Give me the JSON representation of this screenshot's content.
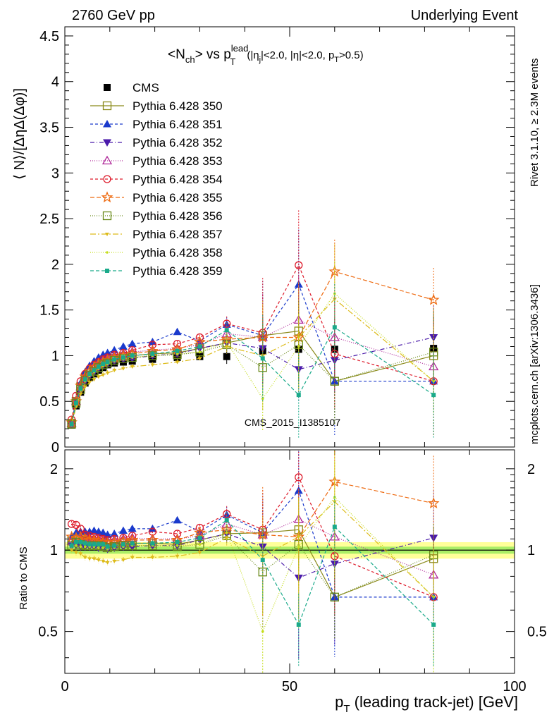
{
  "header": {
    "left": "2760 GeV pp",
    "right": "Underlying Event"
  },
  "side_labels": {
    "rivet": "Rivet 3.1.10, ≥ 2.3M events",
    "mcplots": "mcplots.cern.ch [arXiv:1306.3436]"
  },
  "watermark": "CMS_2015_I1385107",
  "title": {
    "main_prefix": "<N",
    "main_sub": "ch",
    "main_mid": "> vs p",
    "main_sup": "lead",
    "main_sub2": "T",
    "cuts_a": "(|η",
    "cuts_sub_j": "j",
    "cuts_b": "|<2.0, |η|<2.0, p",
    "cuts_sub_t": "T",
    "cuts_c": ">0.5)"
  },
  "axes": {
    "ylabel_main": "⟨ N⟩/[ΔηΔ(Δφ)]",
    "ylabel_ratio": "Ratio to CMS",
    "xlabel_main": "p",
    "xlabel_sub": "T",
    "xlabel_rest": " (leading track-jet) [GeV]"
  },
  "chart_data": [
    {
      "type": "scatter",
      "panel": "main",
      "xlim": [
        0,
        100
      ],
      "ylim": [
        0,
        4.6
      ],
      "yticks": [
        "0",
        "0.5",
        "1",
        "1.5",
        "2",
        "2.5",
        "3",
        "3.5",
        "4",
        "4.5"
      ],
      "xticks": [
        "0",
        "50",
        "100"
      ],
      "x": [
        1.5,
        2.5,
        3.5,
        4.5,
        5.5,
        6.5,
        7.5,
        8.5,
        9.5,
        11,
        13,
        15,
        19.5,
        25,
        30,
        36,
        44,
        52,
        60,
        82
      ],
      "series": [
        {
          "name": "CMS",
          "color": "#000000",
          "marker": "square-filled",
          "dash": "none",
          "values": [
            0.24,
            0.45,
            0.6,
            0.7,
            0.76,
            0.8,
            0.84,
            0.87,
            0.9,
            0.92,
            0.93,
            0.94,
            0.96,
            0.98,
            0.99,
            0.99,
            1.05,
            1.07,
            1.07,
            1.08
          ]
        },
        {
          "name": "Pythia 6.428 350",
          "color": "#8a8a1a",
          "marker": "square-open",
          "dash": "solid",
          "values": [
            0.26,
            0.5,
            0.66,
            0.76,
            0.82,
            0.86,
            0.9,
            0.93,
            0.95,
            0.97,
            0.99,
            1.0,
            1.02,
            1.03,
            1.08,
            1.14,
            1.22,
            1.27,
            0.72,
            1.0
          ]
        },
        {
          "name": "Pythia 6.428 351",
          "color": "#1a3acc",
          "marker": "triangle-up-filled",
          "dash": "4,3",
          "values": [
            0.27,
            0.52,
            0.7,
            0.82,
            0.89,
            0.94,
            0.98,
            1.01,
            1.03,
            1.06,
            1.1,
            1.13,
            1.15,
            1.26,
            1.16,
            1.34,
            1.22,
            1.78,
            0.72,
            0.72
          ]
        },
        {
          "name": "Pythia 6.428 352",
          "color": "#4a1aaa",
          "marker": "triangle-down-filled",
          "dash": "6,3,1,3",
          "values": [
            0.25,
            0.47,
            0.62,
            0.72,
            0.78,
            0.82,
            0.86,
            0.89,
            0.91,
            0.94,
            0.96,
            0.97,
            1.0,
            1.02,
            1.08,
            1.14,
            1.08,
            0.85,
            0.95,
            1.2
          ]
        },
        {
          "name": "Pythia 6.428 353",
          "color": "#b02a9a",
          "marker": "triangle-up-open",
          "dash": "1,2",
          "values": [
            0.26,
            0.5,
            0.66,
            0.77,
            0.84,
            0.88,
            0.92,
            0.95,
            0.97,
            1.0,
            1.02,
            1.04,
            1.06,
            1.08,
            1.12,
            1.24,
            1.2,
            1.39,
            1.2,
            0.88
          ]
        },
        {
          "name": "Pythia 6.428 354",
          "color": "#dd1a2a",
          "marker": "circle-open",
          "dash": "4,3",
          "values": [
            0.3,
            0.56,
            0.72,
            0.8,
            0.86,
            0.9,
            0.93,
            0.96,
            0.98,
            1.01,
            1.03,
            1.06,
            1.12,
            1.13,
            1.2,
            1.35,
            1.25,
            1.99,
            1.02,
            0.72
          ]
        },
        {
          "name": "Pythia 6.428 355",
          "color": "#ee6a10",
          "marker": "star-open",
          "dash": "6,3",
          "values": [
            0.27,
            0.5,
            0.67,
            0.77,
            0.83,
            0.87,
            0.91,
            0.93,
            0.95,
            0.98,
            1.0,
            1.02,
            1.05,
            1.07,
            1.15,
            1.18,
            1.2,
            1.2,
            1.92,
            1.61
          ]
        },
        {
          "name": "Pythia 6.428 356",
          "color": "#6a8a1a",
          "marker": "square-open",
          "dash": "1,2",
          "values": [
            0.25,
            0.48,
            0.63,
            0.73,
            0.79,
            0.83,
            0.87,
            0.9,
            0.92,
            0.95,
            0.97,
            0.98,
            1.0,
            1.01,
            1.04,
            1.12,
            0.87,
            1.12,
            0.72,
            1.04
          ]
        },
        {
          "name": "Pythia 6.428 357",
          "color": "#ddbb1a",
          "marker": "tri-small",
          "dash": "8,3,2,3",
          "values": [
            0.24,
            0.44,
            0.58,
            0.66,
            0.71,
            0.74,
            0.77,
            0.79,
            0.81,
            0.84,
            0.86,
            0.88,
            0.9,
            0.93,
            0.97,
            1.1,
            1.0,
            1.2,
            1.62,
            0.72
          ]
        },
        {
          "name": "Pythia 6.428 358",
          "color": "#c4dd1a",
          "marker": "dot-small",
          "dash": "1,2",
          "values": [
            0.25,
            0.47,
            0.62,
            0.72,
            0.78,
            0.82,
            0.86,
            0.89,
            0.91,
            0.94,
            0.96,
            0.98,
            1.0,
            1.02,
            1.04,
            1.15,
            0.53,
            1.1,
            1.68,
            0.72
          ]
        },
        {
          "name": "Pythia 6.428 359",
          "color": "#1aaa8a",
          "marker": "square-small",
          "dash": "5,3",
          "values": [
            0.25,
            0.48,
            0.64,
            0.74,
            0.8,
            0.84,
            0.88,
            0.91,
            0.93,
            0.96,
            0.98,
            1.0,
            1.02,
            1.05,
            1.1,
            1.28,
            0.97,
            0.57,
            1.31,
            0.57
          ]
        }
      ]
    },
    {
      "type": "scatter",
      "panel": "ratio",
      "xlim": [
        0,
        100
      ],
      "ylim": [
        0.35,
        2.35
      ],
      "yticks": [
        "0.5",
        "1",
        "2"
      ],
      "yticks_right": [
        "0.5",
        "1",
        "2"
      ],
      "xticks": [
        "0",
        "50",
        "100"
      ],
      "band": {
        "inner": 0.03,
        "outer": 0.07,
        "inner_color": "#aaee66",
        "outer_color": "#ffff99"
      },
      "x": [
        1.5,
        2.5,
        3.5,
        4.5,
        5.5,
        6.5,
        7.5,
        8.5,
        9.5,
        11,
        13,
        15,
        19.5,
        25,
        30,
        36,
        44,
        52,
        60,
        82
      ],
      "series": [
        {
          "name": "Pythia 6.428 350",
          "values": [
            1.08,
            1.11,
            1.1,
            1.09,
            1.08,
            1.07,
            1.07,
            1.07,
            1.06,
            1.05,
            1.06,
            1.06,
            1.06,
            1.05,
            1.09,
            1.15,
            1.16,
            1.19,
            0.67,
            0.93
          ]
        },
        {
          "name": "Pythia 6.428 351",
          "values": [
            1.12,
            1.16,
            1.17,
            1.17,
            1.17,
            1.18,
            1.17,
            1.16,
            1.14,
            1.15,
            1.18,
            1.2,
            1.2,
            1.29,
            1.17,
            1.35,
            1.16,
            1.66,
            0.67,
            0.67
          ]
        },
        {
          "name": "Pythia 6.428 352",
          "values": [
            1.04,
            1.04,
            1.03,
            1.03,
            1.03,
            1.03,
            1.02,
            1.02,
            1.01,
            1.02,
            1.03,
            1.03,
            1.04,
            1.04,
            1.09,
            1.15,
            1.03,
            0.79,
            0.89,
            1.11
          ]
        },
        {
          "name": "Pythia 6.428 353",
          "values": [
            1.08,
            1.11,
            1.1,
            1.1,
            1.11,
            1.1,
            1.1,
            1.09,
            1.08,
            1.09,
            1.1,
            1.11,
            1.1,
            1.1,
            1.13,
            1.25,
            1.14,
            1.3,
            1.12,
            0.81
          ]
        },
        {
          "name": "Pythia 6.428 354",
          "values": [
            1.25,
            1.24,
            1.2,
            1.14,
            1.13,
            1.12,
            1.11,
            1.1,
            1.09,
            1.1,
            1.11,
            1.13,
            1.17,
            1.15,
            1.21,
            1.36,
            1.19,
            1.86,
            0.95,
            0.67
          ]
        },
        {
          "name": "Pythia 6.428 355",
          "values": [
            1.12,
            1.11,
            1.12,
            1.1,
            1.09,
            1.09,
            1.08,
            1.07,
            1.06,
            1.07,
            1.08,
            1.09,
            1.09,
            1.09,
            1.16,
            1.19,
            1.14,
            1.12,
            1.79,
            1.49
          ]
        },
        {
          "name": "Pythia 6.428 356",
          "values": [
            1.04,
            1.07,
            1.05,
            1.04,
            1.04,
            1.04,
            1.04,
            1.03,
            1.02,
            1.03,
            1.04,
            1.04,
            1.04,
            1.03,
            1.05,
            1.13,
            0.83,
            1.05,
            0.67,
            0.96
          ]
        },
        {
          "name": "Pythia 6.428 357",
          "values": [
            1.0,
            0.98,
            0.97,
            0.94,
            0.93,
            0.93,
            0.92,
            0.91,
            0.9,
            0.91,
            0.92,
            0.94,
            0.94,
            0.95,
            0.98,
            1.11,
            0.95,
            1.12,
            1.51,
            0.67
          ]
        },
        {
          "name": "Pythia 6.428 358",
          "values": [
            1.04,
            1.04,
            1.03,
            1.03,
            1.03,
            1.03,
            1.02,
            1.02,
            1.01,
            1.02,
            1.03,
            1.04,
            1.04,
            1.04,
            1.05,
            1.16,
            0.5,
            1.03,
            1.57,
            0.67
          ]
        },
        {
          "name": "Pythia 6.428 359",
          "values": [
            1.04,
            1.07,
            1.07,
            1.06,
            1.05,
            1.05,
            1.05,
            1.05,
            1.03,
            1.04,
            1.05,
            1.06,
            1.06,
            1.07,
            1.11,
            1.29,
            0.92,
            0.53,
            1.22,
            0.53
          ]
        }
      ]
    }
  ]
}
